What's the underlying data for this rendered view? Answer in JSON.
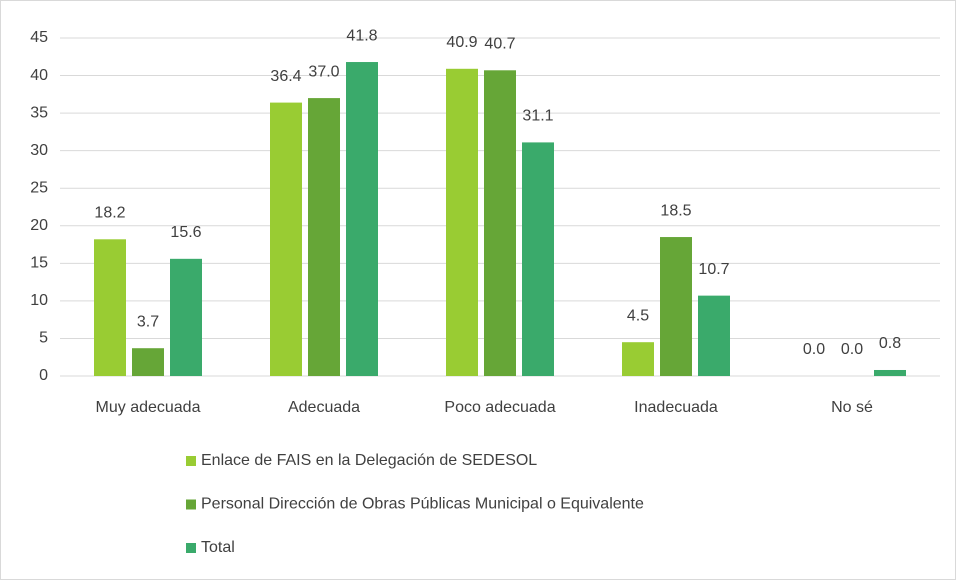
{
  "chart_data": {
    "type": "bar",
    "categories": [
      "Muy adecuada",
      "Adecuada",
      "Poco adecuada",
      "Inadecuada",
      "No sé"
    ],
    "series": [
      {
        "name": "Enlace de FAIS en la Delegación de SEDESOL",
        "color": "#99cc33",
        "values": [
          18.2,
          36.4,
          40.9,
          4.5,
          0.0
        ],
        "value_labels": [
          "18.2",
          "36.4",
          "40.9",
          "4.5",
          "0.0"
        ]
      },
      {
        "name": "Personal Dirección de Obras Públicas Municipal o Equivalente",
        "color": "#66a637",
        "values": [
          3.7,
          37.0,
          40.7,
          18.5,
          0.0
        ],
        "value_labels": [
          "3.7",
          "37.0",
          "40.7",
          "18.5",
          "0.0"
        ]
      },
      {
        "name": "Total",
        "color": "#3aaa6b",
        "values": [
          15.6,
          41.8,
          31.1,
          10.7,
          0.8
        ],
        "value_labels": [
          "15.6",
          "41.8",
          "31.1",
          "10.7",
          "0.8"
        ]
      }
    ],
    "ylim": [
      0,
      45
    ],
    "yticks": [
      0,
      5,
      10,
      15,
      20,
      25,
      30,
      35,
      40,
      45
    ],
    "grid": true,
    "legend": "bottom"
  }
}
